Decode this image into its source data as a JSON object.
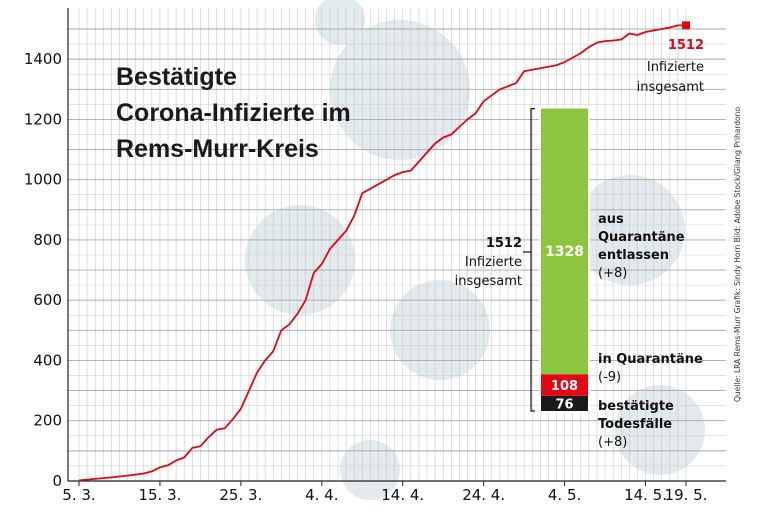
{
  "chart_data": {
    "type": "line",
    "title_lines": [
      "Bestätigte",
      "Corona-Infizierte im",
      "Rems-Murr-Kreis"
    ],
    "x_ticks": [
      "5. 3.",
      "15. 3.",
      "25. 3.",
      "4. 4.",
      "14. 4.",
      "24. 4.",
      "4. 5.",
      "14. 5.",
      "19. 5."
    ],
    "x_tick_days": [
      0,
      10,
      20,
      30,
      40,
      50,
      60,
      70,
      75
    ],
    "ylim": [
      0,
      1500
    ],
    "y_ticks": [
      0,
      200,
      400,
      600,
      800,
      1000,
      1200,
      1400
    ],
    "grid": true,
    "series": [
      {
        "color": "#e30613",
        "x": [
          0,
          2,
          4,
          6,
          8,
          9,
          10,
          11,
          12,
          13,
          14,
          15,
          16,
          17,
          18,
          19,
          20,
          21,
          22,
          23,
          24,
          25,
          26,
          27,
          28,
          29,
          30,
          31,
          32,
          33,
          34,
          35,
          36,
          37,
          38,
          39,
          40,
          41,
          42,
          43,
          44,
          45,
          46,
          47,
          48,
          49,
          50,
          51,
          52,
          53,
          54,
          55,
          56,
          57,
          58,
          59,
          60,
          61,
          62,
          63,
          64,
          65,
          66,
          67,
          68,
          69,
          70,
          71,
          72,
          73,
          74,
          75
        ],
        "y": [
          2,
          7,
          12,
          18,
          25,
          32,
          45,
          52,
          68,
          78,
          110,
          115,
          145,
          170,
          175,
          205,
          240,
          300,
          360,
          400,
          430,
          500,
          520,
          555,
          600,
          690,
          720,
          770,
          800,
          830,
          880,
          955,
          970,
          985,
          1000,
          1015,
          1025,
          1030,
          1060,
          1090,
          1120,
          1140,
          1150,
          1175,
          1200,
          1220,
          1260,
          1280,
          1300,
          1310,
          1320,
          1360,
          1365,
          1370,
          1375,
          1380,
          1390,
          1405,
          1420,
          1440,
          1455,
          1460,
          1462,
          1465,
          1485,
          1480,
          1490,
          1495,
          1500,
          1505,
          1512,
          1512
        ]
      }
    ],
    "end_label": {
      "value": "1512",
      "line1": "Infizierte",
      "line2": "insgesamt"
    },
    "stack_bar": {
      "total_value": "1512",
      "total_line1": "Infizierte",
      "total_line2": "insgesamt",
      "segments": [
        {
          "value": 1328,
          "label": "1328",
          "color": "#8cc63f",
          "text_lines": [
            "aus",
            "Quarantäne",
            "entlassen",
            "(+8)"
          ]
        },
        {
          "value": 108,
          "label": "108",
          "color": "#e30613",
          "text_lines": [
            "in Quarantäne",
            "(-9)"
          ]
        },
        {
          "value": 76,
          "label": "76",
          "color": "#1a1a1a",
          "text_lines": [
            "bestätigte",
            "Todesfälle",
            "(+8)"
          ]
        }
      ]
    },
    "credits": {
      "line1": "Quelle: LRA Rems-Murr   Grafik: Sindy Horn   Bild: Adobe Stock/Gilang Prihardono"
    }
  }
}
